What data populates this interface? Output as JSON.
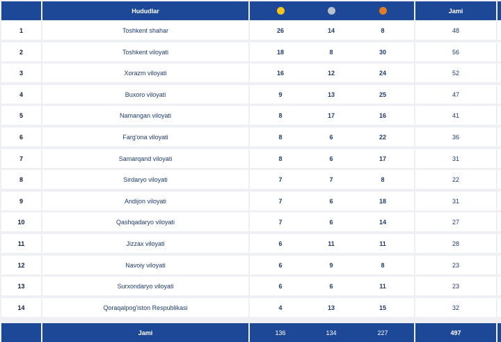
{
  "header": {
    "region_label": "Hududlar",
    "total_label": "Jami",
    "medal_colors": {
      "gold": "#f5c518",
      "silver": "#b8c0cc",
      "bronze": "#e37a26"
    },
    "medal_icons": [
      "gold-medal-icon",
      "silver-medal-icon",
      "bronze-medal-icon"
    ]
  },
  "rows": [
    {
      "rank": "1",
      "region": "Toshkent shahar",
      "gold": "26",
      "silver": "14",
      "bronze": "8",
      "total": "48"
    },
    {
      "rank": "2",
      "region": "Toshkent viloyati",
      "gold": "18",
      "silver": "8",
      "bronze": "30",
      "total": "56"
    },
    {
      "rank": "3",
      "region": "Xorazm viloyati",
      "gold": "16",
      "silver": "12",
      "bronze": "24",
      "total": "52"
    },
    {
      "rank": "4",
      "region": "Buxoro viloyati",
      "gold": "9",
      "silver": "13",
      "bronze": "25",
      "total": "47"
    },
    {
      "rank": "5",
      "region": "Namangan viloyati",
      "gold": "8",
      "silver": "17",
      "bronze": "16",
      "total": "41"
    },
    {
      "rank": "6",
      "region": "Farg'ona viloyati",
      "gold": "8",
      "silver": "6",
      "bronze": "22",
      "total": "36"
    },
    {
      "rank": "7",
      "region": "Samarqand viloyati",
      "gold": "8",
      "silver": "6",
      "bronze": "17",
      "total": "31"
    },
    {
      "rank": "8",
      "region": "Sirdaryo viloyati",
      "gold": "7",
      "silver": "7",
      "bronze": "8",
      "total": "22"
    },
    {
      "rank": "9",
      "region": "Andijon viloyati",
      "gold": "7",
      "silver": "6",
      "bronze": "18",
      "total": "31"
    },
    {
      "rank": "10",
      "region": "Qashqadaryo viloyati",
      "gold": "7",
      "silver": "6",
      "bronze": "14",
      "total": "27"
    },
    {
      "rank": "11",
      "region": "Jizzax viloyati",
      "gold": "6",
      "silver": "11",
      "bronze": "11",
      "total": "28"
    },
    {
      "rank": "12",
      "region": "Navoiy viloyati",
      "gold": "6",
      "silver": "9",
      "bronze": "8",
      "total": "23"
    },
    {
      "rank": "13",
      "region": "Surxondaryo viloyati",
      "gold": "6",
      "silver": "6",
      "bronze": "11",
      "total": "23"
    },
    {
      "rank": "14",
      "region": "Qoraqalpog'iston Respublikasi",
      "gold": "4",
      "silver": "13",
      "bronze": "15",
      "total": "32"
    }
  ],
  "footer": {
    "label": "Jami",
    "gold": "136",
    "silver": "134",
    "bronze": "227",
    "total": "497"
  }
}
